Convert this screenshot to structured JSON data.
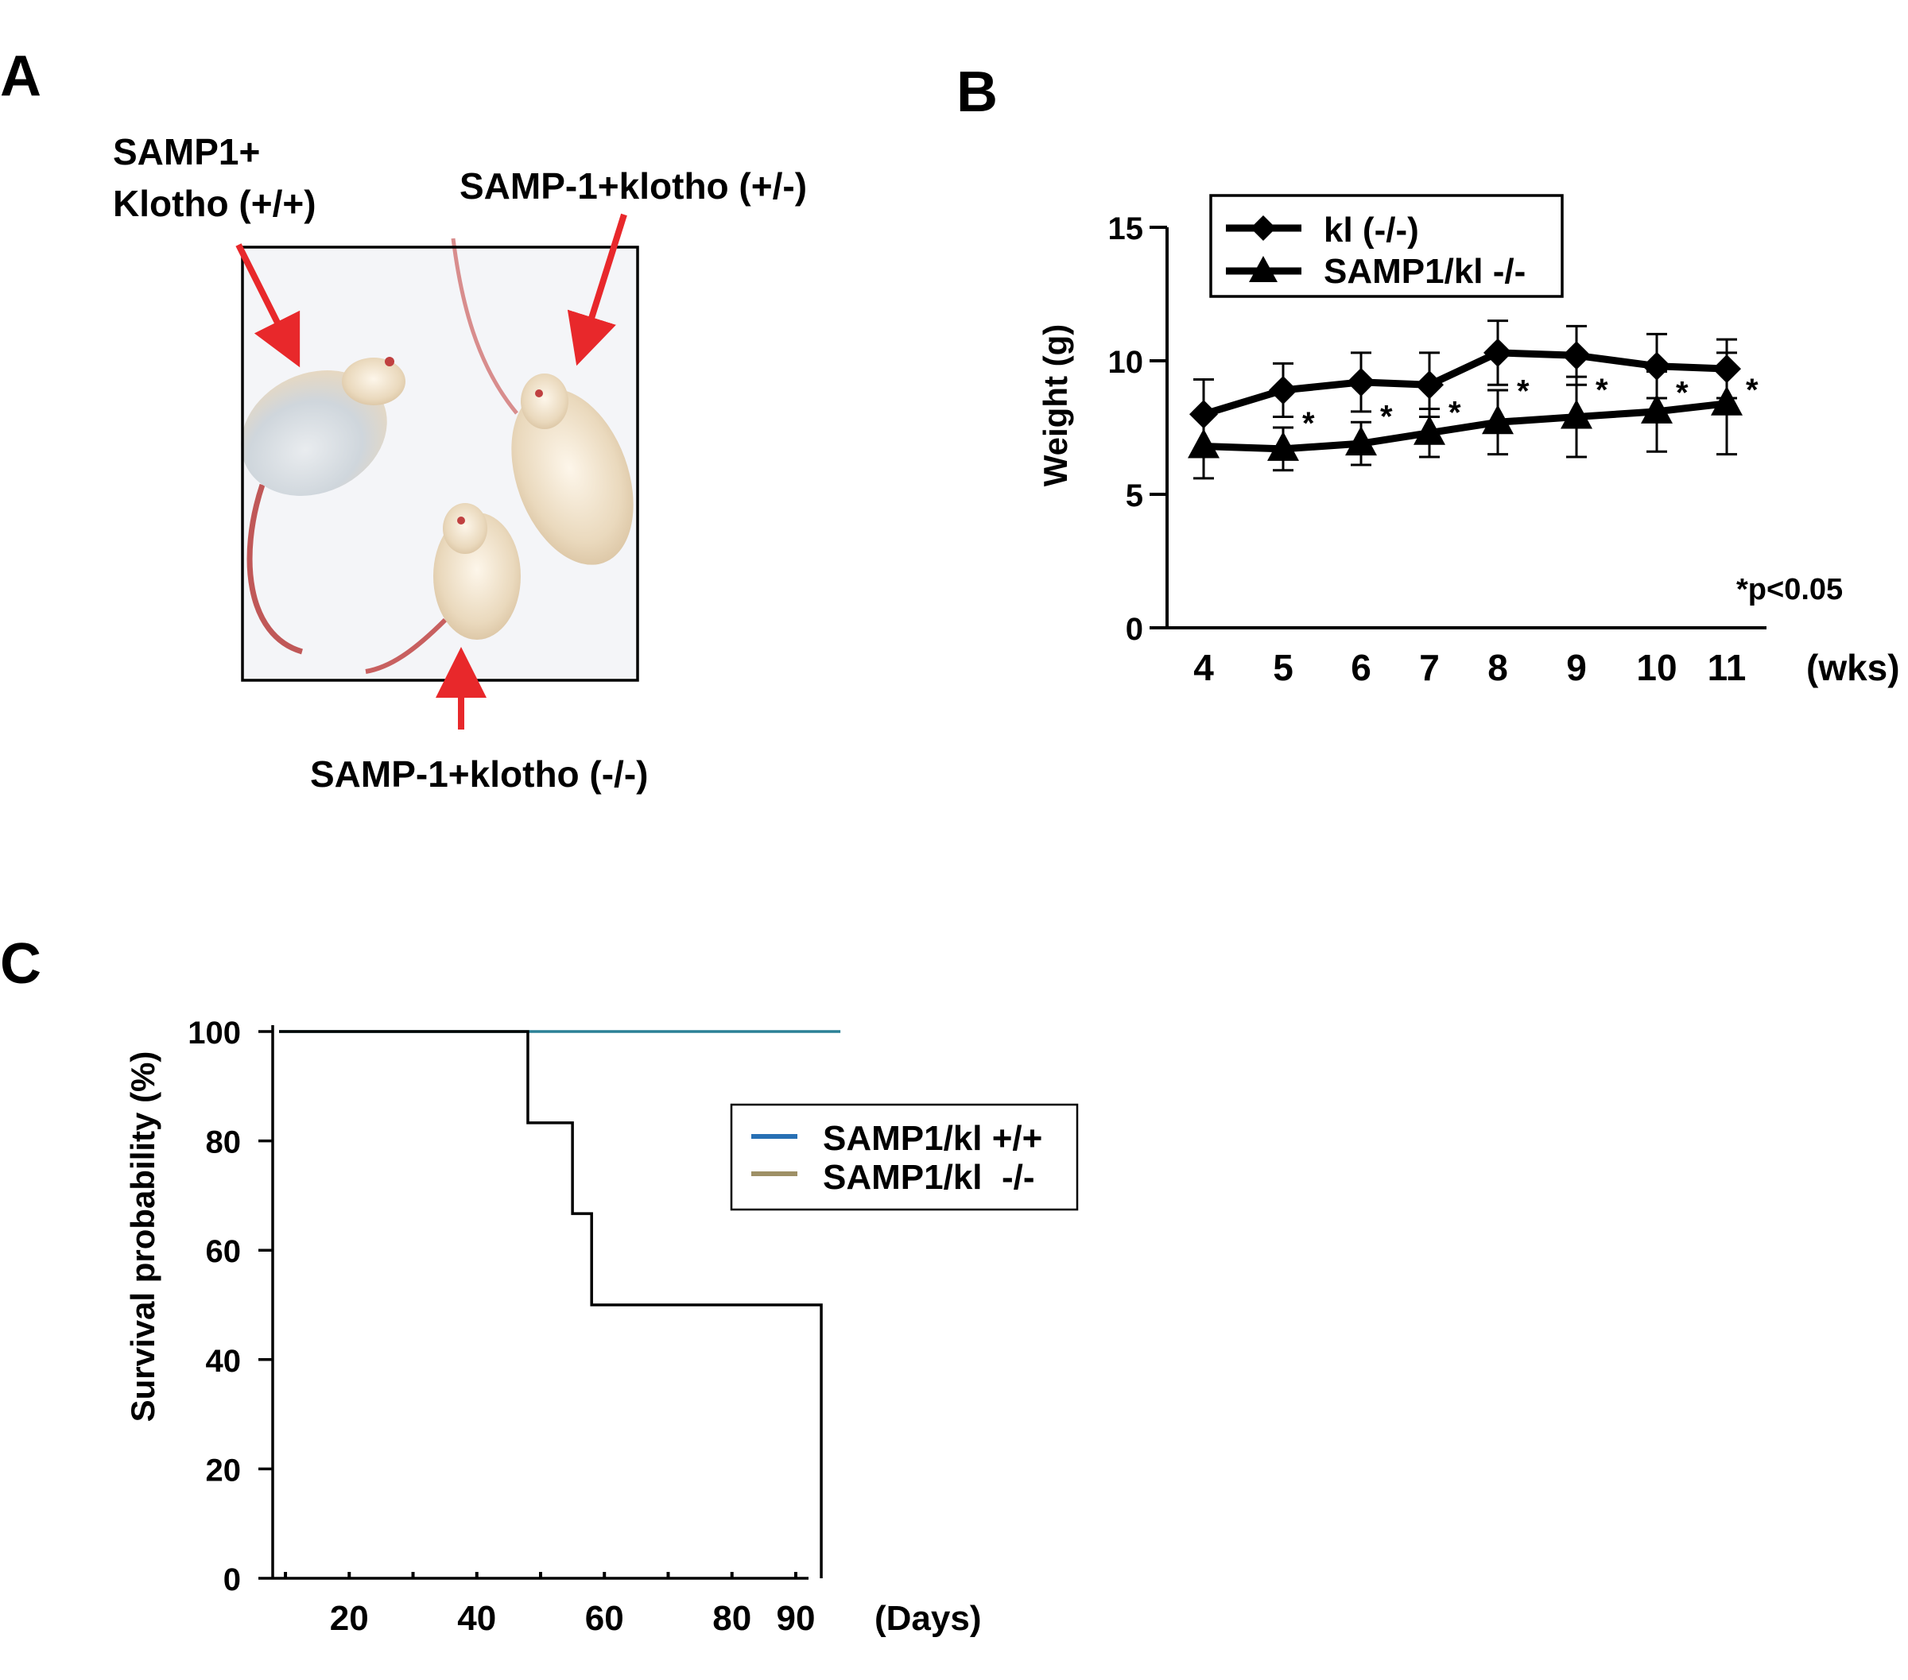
{
  "panels": {
    "a": {
      "letter": "A",
      "labels": {
        "wt": [
          "SAMP1+",
          "Klotho (+/+)"
        ],
        "het": "SAMP-1+klotho (+/-)",
        "ko": "SAMP-1+klotho (-/-)"
      },
      "arrow_color": "#e8282b"
    },
    "b": {
      "letter": "B",
      "note": "*p<0.05"
    },
    "c": {
      "letter": "C"
    }
  },
  "chart_data": [
    {
      "panel": "B",
      "type": "line",
      "x": [
        4,
        5,
        6,
        7,
        8,
        9,
        10,
        11
      ],
      "xunit": "(wks)",
      "ylabel": "Weight (g)",
      "ylim": [
        0,
        15
      ],
      "yticks": [
        0,
        5,
        10,
        15
      ],
      "series": [
        {
          "name": "kl (-/-)",
          "marker": "diamond",
          "values": [
            8.0,
            8.9,
            9.2,
            9.1,
            10.3,
            10.2,
            9.8,
            9.7
          ],
          "err": [
            1.3,
            1.0,
            1.1,
            1.2,
            1.2,
            1.1,
            1.2,
            1.1
          ]
        },
        {
          "name": "SAMP1/kl -/-",
          "marker": "triangle",
          "values": [
            6.8,
            6.7,
            6.9,
            7.3,
            7.7,
            7.9,
            8.1,
            8.4
          ],
          "err": [
            1.2,
            0.8,
            0.8,
            0.9,
            1.2,
            1.5,
            1.5,
            1.9
          ]
        }
      ],
      "significant": [
        5,
        6,
        7,
        8,
        9,
        10,
        11
      ],
      "legend_position": "top-left",
      "grid": false
    },
    {
      "panel": "C",
      "type": "line",
      "xunit": "(Days)",
      "xticks": [
        20,
        40,
        60,
        80,
        90
      ],
      "xlim": [
        8,
        92
      ],
      "ylabel": "Survival probability (%)",
      "ylim": [
        0,
        100
      ],
      "yticks": [
        0,
        20,
        40,
        60,
        80,
        100
      ],
      "series": [
        {
          "name": "SAMP1/kl +/+",
          "color": "#2870b4",
          "line_color": "#2b8096",
          "points": [
            [
              9,
              100
            ],
            [
              97,
              100
            ]
          ]
        },
        {
          "name": "SAMP1/kl  -/-",
          "color": "#9e9066",
          "line_color": "#000000",
          "points": [
            [
              9,
              100
            ],
            [
              48,
              100
            ],
            [
              48,
              83.3
            ],
            [
              55,
              83.3
            ],
            [
              55,
              66.7
            ],
            [
              58,
              66.7
            ],
            [
              58,
              50
            ],
            [
              94,
              50
            ],
            [
              94,
              0
            ]
          ]
        }
      ],
      "legend_position": "right",
      "grid": false
    }
  ]
}
